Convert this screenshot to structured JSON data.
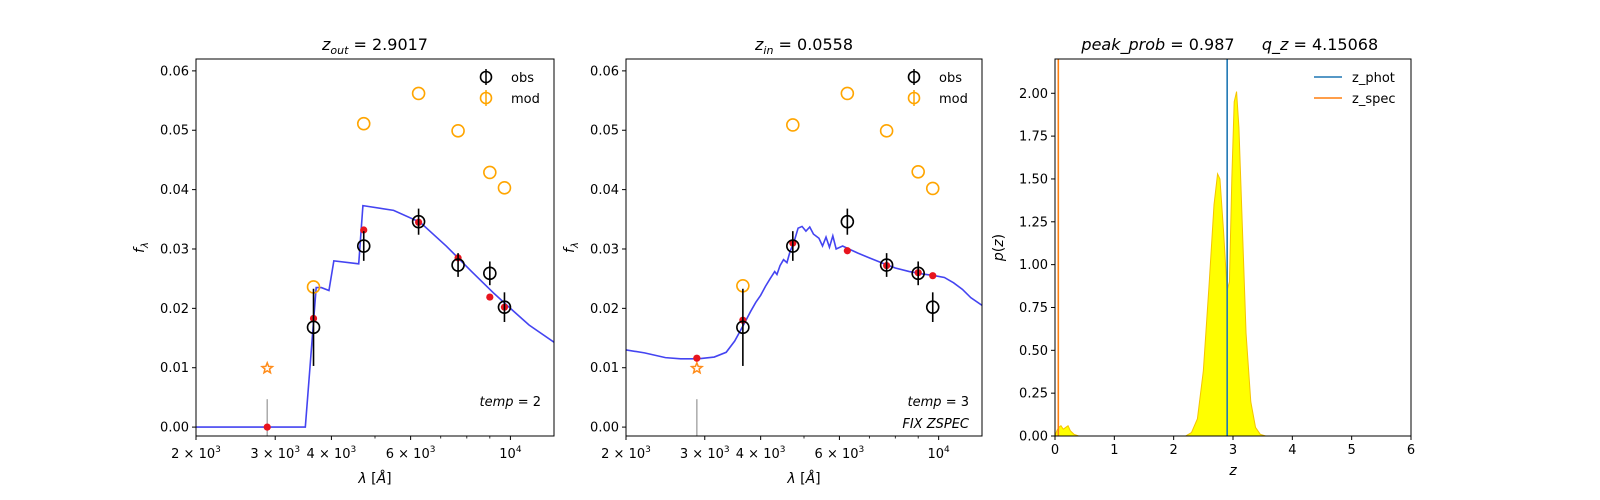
{
  "chart_data": [
    {
      "type": "scatter",
      "panel": "left",
      "title_parts": [
        "z",
        "out",
        " = 2.9017"
      ],
      "xlabel_parts": [
        "λ [",
        "Å",
        "]"
      ],
      "ylabel": "f_λ",
      "x_scale": "log",
      "xlim": [
        2000,
        12500
      ],
      "ylim": [
        -0.0015,
        0.062
      ],
      "xticks": [
        {
          "value": 2000,
          "base": "2 × 10",
          "exp": "3"
        },
        {
          "value": 3000,
          "base": "3 × 10",
          "exp": "3"
        },
        {
          "value": 4000,
          "base": "4 × 10",
          "exp": "3"
        },
        {
          "value": 6000,
          "base": "6 × 10",
          "exp": "3"
        },
        {
          "value": 10000,
          "base": "10",
          "exp": "4"
        }
      ],
      "yticks": [
        0.0,
        0.01,
        0.02,
        0.03,
        0.04,
        0.05,
        0.06
      ],
      "ytick_labels": [
        "0.00",
        "0.01",
        "0.02",
        "0.03",
        "0.04",
        "0.05",
        "0.06"
      ],
      "model_curve": [
        [
          2000,
          0
        ],
        [
          3500,
          0
        ],
        [
          3700,
          0.0235
        ],
        [
          3800,
          0.0235
        ],
        [
          3950,
          0.023
        ],
        [
          4050,
          0.028
        ],
        [
          4600,
          0.0275
        ],
        [
          4700,
          0.0373
        ],
        [
          5500,
          0.0365
        ],
        [
          6300,
          0.0345
        ],
        [
          7200,
          0.0305
        ],
        [
          8200,
          0.0262
        ],
        [
          9200,
          0.0225
        ],
        [
          10000,
          0.02
        ],
        [
          11000,
          0.0172
        ],
        [
          12500,
          0.0143
        ]
      ],
      "obs": [
        {
          "x": 3650,
          "y": 0.0168,
          "err": 0.0065
        },
        {
          "x": 4720,
          "y": 0.0305,
          "err": 0.0025
        },
        {
          "x": 6250,
          "y": 0.0346,
          "err": 0.0022
        },
        {
          "x": 7650,
          "y": 0.0273,
          "err": 0.002
        },
        {
          "x": 9000,
          "y": 0.0259,
          "err": 0.002
        },
        {
          "x": 9700,
          "y": 0.0202,
          "err": 0.0025
        }
      ],
      "mod": [
        {
          "x": 3650,
          "y": 0.0236
        },
        {
          "x": 4720,
          "y": 0.0511
        },
        {
          "x": 6250,
          "y": 0.0562
        },
        {
          "x": 7650,
          "y": 0.0499
        },
        {
          "x": 9000,
          "y": 0.0429
        },
        {
          "x": 9700,
          "y": 0.0403
        }
      ],
      "model_points": [
        {
          "x": 2880,
          "y": 0.0
        },
        {
          "x": 3650,
          "y": 0.0183
        },
        {
          "x": 4720,
          "y": 0.0332
        },
        {
          "x": 6250,
          "y": 0.0345
        },
        {
          "x": 7650,
          "y": 0.0285
        },
        {
          "x": 9000,
          "y": 0.0219
        },
        {
          "x": 9700,
          "y": 0.0202
        }
      ],
      "star": {
        "x": 2880,
        "y": 0.0099
      },
      "gray_bar": {
        "x": 2880,
        "y0": -0.0015,
        "y1": 0.0047
      },
      "annotations": [
        {
          "text": "temp = 2",
          "pos": "lower-right-1"
        }
      ],
      "legend": [
        "obs",
        "mod"
      ],
      "legend_loc": "upper-right",
      "colors": {
        "curve": "#3a3af0",
        "obs": "#000000",
        "mod": "#ffa500",
        "points": "#e8141e",
        "star": "#ff8c1a",
        "bar": "#aaaaaa"
      }
    },
    {
      "type": "scatter",
      "panel": "middle",
      "title_parts": [
        "z",
        "in",
        " = 0.0558"
      ],
      "xlabel_parts": [
        "λ [",
        "Å",
        "]"
      ],
      "ylabel": "f_λ",
      "x_scale": "log",
      "xlim": [
        2000,
        12500
      ],
      "ylim": [
        -0.0015,
        0.062
      ],
      "xticks": [
        {
          "value": 2000,
          "base": "2 × 10",
          "exp": "3"
        },
        {
          "value": 3000,
          "base": "3 × 10",
          "exp": "3"
        },
        {
          "value": 4000,
          "base": "4 × 10",
          "exp": "3"
        },
        {
          "value": 6000,
          "base": "6 × 10",
          "exp": "3"
        },
        {
          "value": 10000,
          "base": "10",
          "exp": "4"
        }
      ],
      "yticks": [
        0.0,
        0.01,
        0.02,
        0.03,
        0.04,
        0.05,
        0.06
      ],
      "ytick_labels": [
        "0.00",
        "0.01",
        "0.02",
        "0.03",
        "0.04",
        "0.05",
        "0.06"
      ],
      "model_curve": [
        [
          2000,
          0.013
        ],
        [
          2200,
          0.0125
        ],
        [
          2450,
          0.0117
        ],
        [
          2650,
          0.0115
        ],
        [
          2900,
          0.0115
        ],
        [
          3150,
          0.0118
        ],
        [
          3350,
          0.0126
        ],
        [
          3500,
          0.0145
        ],
        [
          3650,
          0.017
        ],
        [
          3800,
          0.0195
        ],
        [
          3900,
          0.021
        ],
        [
          4000,
          0.0222
        ],
        [
          4100,
          0.0237
        ],
        [
          4200,
          0.025
        ],
        [
          4300,
          0.0262
        ],
        [
          4350,
          0.0257
        ],
        [
          4420,
          0.0272
        ],
        [
          4500,
          0.0282
        ],
        [
          4580,
          0.0277
        ],
        [
          4650,
          0.0295
        ],
        [
          4750,
          0.0312
        ],
        [
          4850,
          0.0335
        ],
        [
          4950,
          0.0338
        ],
        [
          5050,
          0.033
        ],
        [
          5150,
          0.0337
        ],
        [
          5250,
          0.0325
        ],
        [
          5400,
          0.0318
        ],
        [
          5500,
          0.0305
        ],
        [
          5600,
          0.032
        ],
        [
          5700,
          0.0303
        ],
        [
          5800,
          0.0322
        ],
        [
          5900,
          0.03
        ],
        [
          6100,
          0.0305
        ],
        [
          6300,
          0.03
        ],
        [
          6600,
          0.0293
        ],
        [
          7000,
          0.0285
        ],
        [
          7500,
          0.0276
        ],
        [
          8000,
          0.0268
        ],
        [
          8600,
          0.0262
        ],
        [
          9200,
          0.0258
        ],
        [
          9800,
          0.0255
        ],
        [
          10300,
          0.0252
        ],
        [
          10800,
          0.0243
        ],
        [
          11300,
          0.0232
        ],
        [
          11800,
          0.0218
        ],
        [
          12500,
          0.0205
        ]
      ],
      "obs": [
        {
          "x": 3650,
          "y": 0.0168,
          "err": 0.0065
        },
        {
          "x": 4720,
          "y": 0.0305,
          "err": 0.0025
        },
        {
          "x": 6250,
          "y": 0.0346,
          "err": 0.0022
        },
        {
          "x": 7650,
          "y": 0.0273,
          "err": 0.002
        },
        {
          "x": 9000,
          "y": 0.0259,
          "err": 0.002
        },
        {
          "x": 9700,
          "y": 0.0202,
          "err": 0.0025
        }
      ],
      "mod": [
        {
          "x": 2880,
          "y": 0.0099,
          "marker": "star"
        },
        {
          "x": 3650,
          "y": 0.0238
        },
        {
          "x": 4720,
          "y": 0.0509
        },
        {
          "x": 6250,
          "y": 0.0562
        },
        {
          "x": 7650,
          "y": 0.0499
        },
        {
          "x": 9000,
          "y": 0.043
        },
        {
          "x": 9700,
          "y": 0.0402
        }
      ],
      "model_points": [
        {
          "x": 2880,
          "y": 0.0116
        },
        {
          "x": 3650,
          "y": 0.018
        },
        {
          "x": 4720,
          "y": 0.031
        },
        {
          "x": 6250,
          "y": 0.0297
        },
        {
          "x": 7650,
          "y": 0.0272
        },
        {
          "x": 9000,
          "y": 0.026
        },
        {
          "x": 9700,
          "y": 0.0255
        }
      ],
      "star": {
        "x": 2880,
        "y": 0.0099
      },
      "gray_bar": {
        "x": 2880,
        "y0": -0.0015,
        "y1": 0.0047
      },
      "annotations": [
        {
          "text": "temp = 3",
          "pos": "lower-right-1"
        },
        {
          "text": "FIX ZSPEC",
          "pos": "lower-right-2"
        }
      ],
      "legend": [
        "obs",
        "mod"
      ],
      "legend_loc": "upper-right",
      "colors": {
        "curve": "#3a3af0",
        "obs": "#000000",
        "mod": "#ffa500",
        "points": "#e8141e",
        "star": "#ff8c1a",
        "bar": "#aaaaaa"
      }
    },
    {
      "type": "area",
      "panel": "right",
      "title_left": "peak_prob = 0.987",
      "title_right": "q_z = 4.15068",
      "xlabel": "z",
      "ylabel": "p(z)",
      "xlim": [
        0,
        6
      ],
      "ylim": [
        0,
        2.2
      ],
      "xticks": [
        0,
        1,
        2,
        3,
        4,
        5,
        6
      ],
      "yticks": [
        0.0,
        0.25,
        0.5,
        0.75,
        1.0,
        1.25,
        1.5,
        1.75,
        2.0
      ],
      "ytick_labels": [
        "0.00",
        "0.25",
        "0.50",
        "0.75",
        "1.00",
        "1.25",
        "1.50",
        "1.75",
        "2.00"
      ],
      "pz": [
        [
          0.0,
          0.0
        ],
        [
          0.03,
          0.03
        ],
        [
          0.06,
          0.05
        ],
        [
          0.1,
          0.06
        ],
        [
          0.14,
          0.04
        ],
        [
          0.18,
          0.05
        ],
        [
          0.22,
          0.06
        ],
        [
          0.26,
          0.03
        ],
        [
          0.32,
          0.01
        ],
        [
          0.4,
          0.0
        ],
        [
          2.2,
          0.0
        ],
        [
          2.3,
          0.02
        ],
        [
          2.4,
          0.1
        ],
        [
          2.5,
          0.38
        ],
        [
          2.6,
          0.9
        ],
        [
          2.68,
          1.35
        ],
        [
          2.74,
          1.53
        ],
        [
          2.78,
          1.5
        ],
        [
          2.84,
          1.2
        ],
        [
          2.9,
          0.85
        ],
        [
          2.94,
          0.9
        ],
        [
          2.98,
          1.5
        ],
        [
          3.02,
          1.95
        ],
        [
          3.06,
          2.01
        ],
        [
          3.1,
          1.8
        ],
        [
          3.16,
          1.2
        ],
        [
          3.22,
          0.6
        ],
        [
          3.3,
          0.2
        ],
        [
          3.38,
          0.05
        ],
        [
          3.46,
          0.01
        ],
        [
          3.55,
          0.0
        ],
        [
          5.0,
          0.0
        ]
      ],
      "z_phot": 2.9017,
      "z_spec": 0.0558,
      "series": [
        {
          "name": "z_phot"
        },
        {
          "name": "z_spec"
        }
      ],
      "legend_loc": "upper-right",
      "colors": {
        "z_phot": "#1f77b4",
        "z_spec": "#ff7f0e",
        "fill": "#ffff00",
        "edge": "#f5c400"
      }
    }
  ]
}
